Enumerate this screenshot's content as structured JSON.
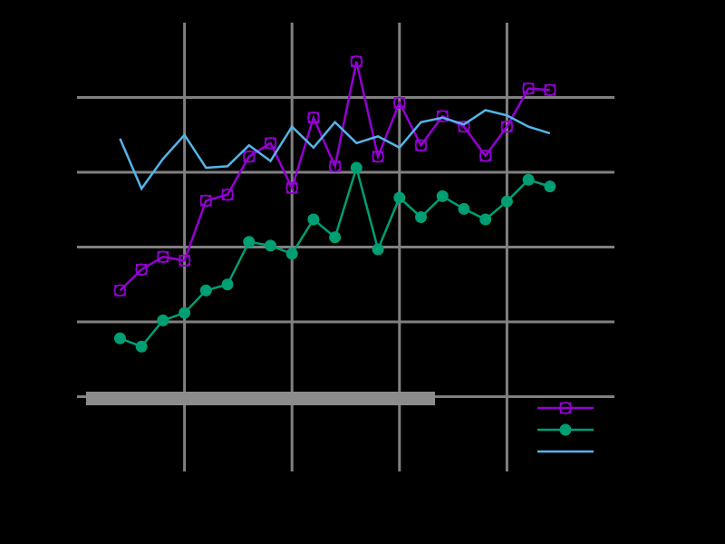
{
  "chart_data": {
    "type": "line",
    "x": [
      0,
      1,
      2,
      3,
      4,
      5,
      6,
      7,
      8,
      9,
      10,
      11,
      12,
      13,
      14,
      15,
      16,
      17,
      18,
      19,
      20
    ],
    "xlim": [
      -2,
      23
    ],
    "xticks": [
      3,
      8,
      13,
      18
    ],
    "ylim": [
      -1,
      5
    ],
    "yticks": [
      0,
      1,
      2,
      3,
      4
    ],
    "grid": true,
    "legend": "lower right",
    "series": [
      {
        "color": "#9400d3",
        "marker": "square-circle",
        "values": [
          1.42,
          1.7,
          1.87,
          1.82,
          2.62,
          2.7,
          3.21,
          3.39,
          2.79,
          3.73,
          3.08,
          4.48,
          3.21,
          3.93,
          3.36,
          3.75,
          3.61,
          3.22,
          3.61,
          4.12,
          4.1
        ]
      },
      {
        "color": "#009e73",
        "marker": "circle",
        "values": [
          0.78,
          0.67,
          1.02,
          1.12,
          1.42,
          1.5,
          2.07,
          2.02,
          1.91,
          2.37,
          2.13,
          3.06,
          1.97,
          2.66,
          2.4,
          2.68,
          2.51,
          2.37,
          2.61,
          2.9,
          2.81
        ]
      },
      {
        "color": "#56b4e9",
        "marker": "none",
        "values": [
          3.45,
          2.78,
          3.18,
          3.5,
          3.06,
          3.08,
          3.36,
          3.15,
          3.61,
          3.33,
          3.67,
          3.39,
          3.48,
          3.33,
          3.67,
          3.73,
          3.64,
          3.83,
          3.76,
          3.61,
          3.52
        ]
      }
    ]
  }
}
